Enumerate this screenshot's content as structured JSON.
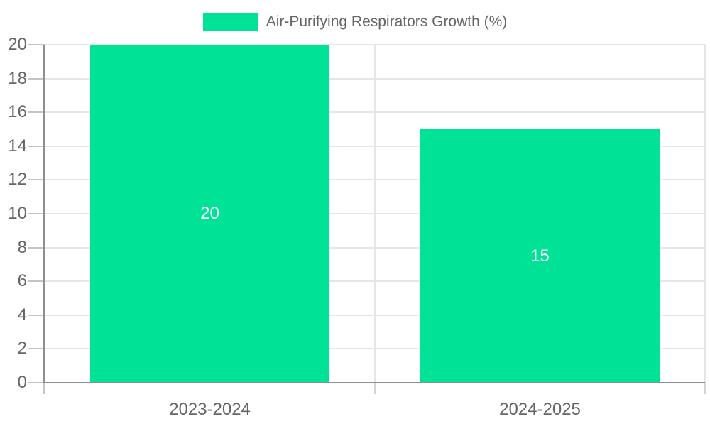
{
  "legend": {
    "label": "Air-Purifying Respirators Growth (%)"
  },
  "chart_data": {
    "type": "bar",
    "title": "Air-Purifying Respirators Growth (%)",
    "categories": [
      "2023-2024",
      "2024-2025"
    ],
    "values": [
      20,
      15
    ],
    "value_labels": [
      "20",
      "15"
    ],
    "xlabel": "",
    "ylabel": "",
    "ylim": [
      0,
      20
    ],
    "ytick_step": 2,
    "yticks": [
      0,
      2,
      4,
      6,
      8,
      10,
      12,
      14,
      16,
      18,
      20
    ],
    "grid": true,
    "legend_position": "top-center"
  },
  "colors": {
    "bar": "#00E396",
    "bar_value_text": "#FFFFFF",
    "axis_text": "#666666",
    "grid_line": "#E6E6E6",
    "axis_line": "#8F8F8F",
    "tick_mark": "#C4C4C4",
    "separator_tick": "#D4D4D4",
    "background": "#FFFFFF"
  }
}
